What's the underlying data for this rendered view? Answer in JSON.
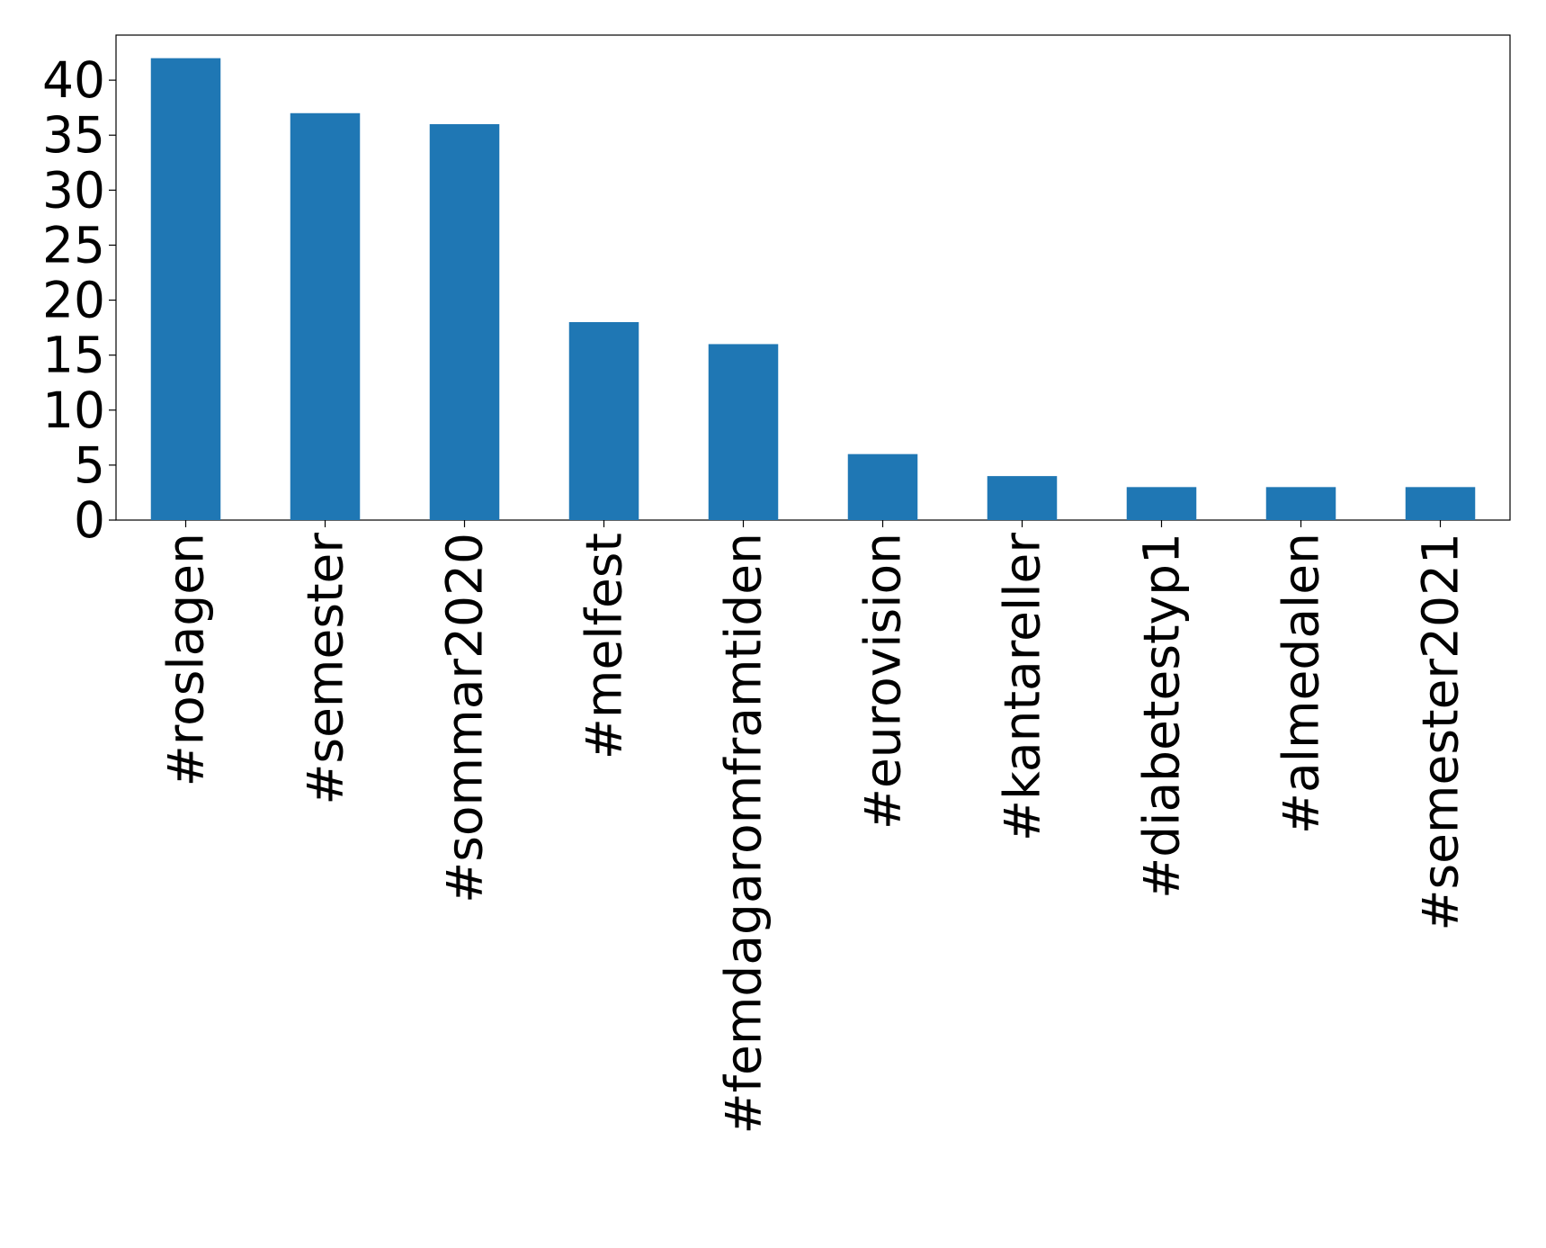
{
  "chart_data": {
    "type": "bar",
    "categories": [
      "#roslagen",
      "#semester",
      "#sommar2020",
      "#melfest",
      "#femdagaromframtiden",
      "#eurovision",
      "#kantareller",
      "#diabetestyp1",
      "#almedalen",
      "#semester2021"
    ],
    "values": [
      42,
      37,
      36,
      18,
      16,
      6,
      4,
      3,
      3,
      3
    ],
    "color": "#1f77b4",
    "ylim": [
      0,
      44.1
    ],
    "yticks": [
      0,
      5,
      10,
      15,
      20,
      25,
      30,
      35,
      40
    ],
    "grid": false
  }
}
